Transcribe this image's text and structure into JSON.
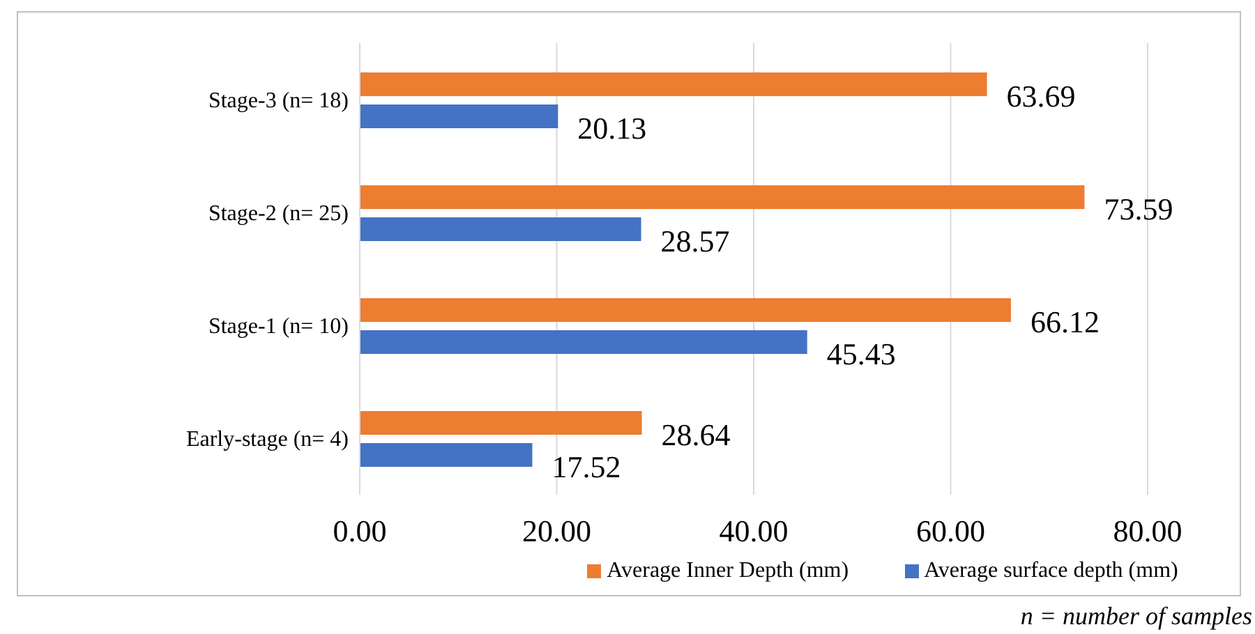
{
  "chart_data": {
    "type": "bar",
    "orientation": "horizontal",
    "categories": [
      "Stage-3 (n= 18)",
      "Stage-2 (n= 25)",
      "Stage-1 (n= 10)",
      "Early-stage (n= 4)"
    ],
    "series": [
      {
        "name": "Average Inner Depth (mm)",
        "color": "#ed7d31",
        "values": [
          63.69,
          73.59,
          66.12,
          28.64
        ]
      },
      {
        "name": "Average surface depth (mm)",
        "color": "#4472c4",
        "values": [
          20.13,
          28.57,
          45.43,
          17.52
        ]
      }
    ],
    "xlim": [
      0,
      80
    ],
    "xticks": [
      {
        "value": 0,
        "label": "0.00"
      },
      {
        "value": 20,
        "label": "20.00"
      },
      {
        "value": 40,
        "label": "40.00"
      },
      {
        "value": 60,
        "label": "60.00"
      },
      {
        "value": 80,
        "label": "80.00"
      }
    ],
    "grid": "x",
    "legend": "bottom",
    "data_labels": true,
    "annotations": [
      "n = number of samples"
    ]
  }
}
